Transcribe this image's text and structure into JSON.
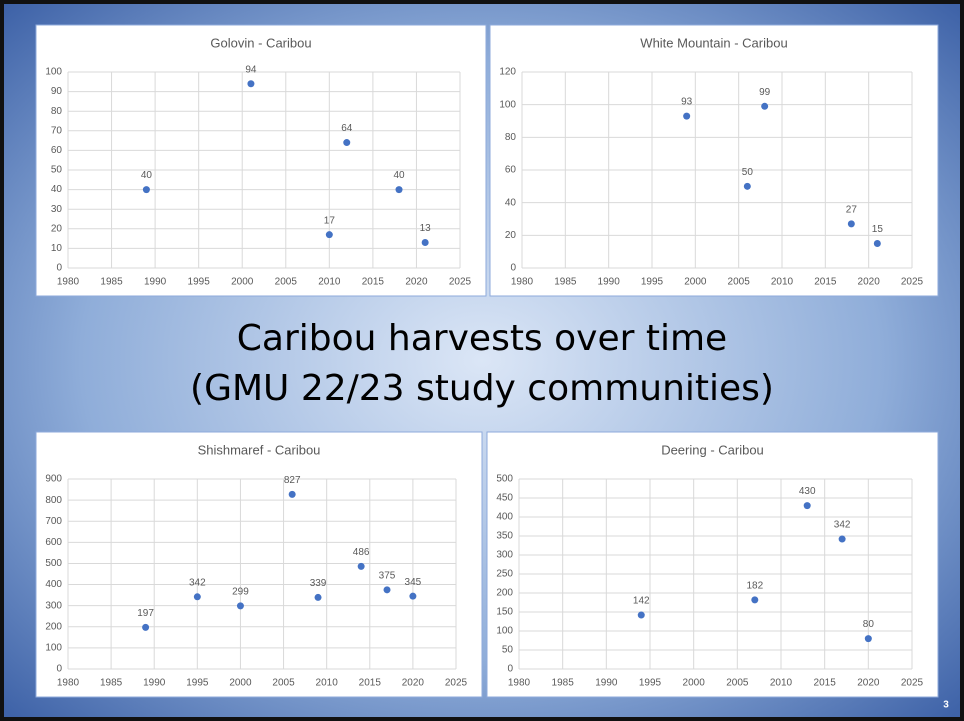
{
  "slide": {
    "title_lines": [
      "Caribou harvests over time",
      "(GMU 22/23 study communities)"
    ],
    "page_number": 3
  },
  "chart_data": [
    {
      "type": "scatter",
      "title": "Golovin - Caribou",
      "color": "#4472c4",
      "x": [
        1989,
        2001,
        2010,
        2012,
        2018,
        2021
      ],
      "values": [
        40,
        94,
        17,
        64,
        40,
        13
      ],
      "xlim": [
        1980,
        2025
      ],
      "xticks": [
        1980,
        1985,
        1990,
        1995,
        2000,
        2005,
        2010,
        2015,
        2020,
        2025
      ],
      "ylim": [
        0,
        100
      ],
      "yticks": [
        0,
        10,
        20,
        30,
        40,
        50,
        60,
        70,
        80,
        90,
        100
      ],
      "grid": true
    },
    {
      "type": "scatter",
      "title": "White Mountain - Caribou",
      "color": "#4472c4",
      "x": [
        1999,
        2006,
        2008,
        2018,
        2021
      ],
      "values": [
        93,
        50,
        99,
        27,
        15
      ],
      "xlim": [
        1980,
        2025
      ],
      "xticks": [
        1980,
        1985,
        1990,
        1995,
        2000,
        2005,
        2010,
        2015,
        2020,
        2025
      ],
      "ylim": [
        0,
        120
      ],
      "yticks": [
        0,
        20,
        40,
        60,
        80,
        100,
        120
      ],
      "grid": true
    },
    {
      "type": "scatter",
      "title": "Shishmaref - Caribou",
      "color": "#4472c4",
      "x": [
        1989,
        1995,
        2000,
        2006,
        2009,
        2014,
        2017,
        2020
      ],
      "values": [
        197,
        342,
        299,
        827,
        339,
        486,
        375,
        345
      ],
      "xlim": [
        1980,
        2025
      ],
      "xticks": [
        1980,
        1985,
        1990,
        1995,
        2000,
        2005,
        2010,
        2015,
        2020,
        2025
      ],
      "ylim": [
        0,
        900
      ],
      "yticks": [
        0,
        100,
        200,
        300,
        400,
        500,
        600,
        700,
        800,
        900
      ],
      "grid": true
    },
    {
      "type": "scatter",
      "title": "Deering - Caribou",
      "color": "#4472c4",
      "x": [
        1994,
        2007,
        2013,
        2017,
        2020
      ],
      "values": [
        142,
        182,
        430,
        342,
        80
      ],
      "xlim": [
        1980,
        2025
      ],
      "xticks": [
        1980,
        1985,
        1990,
        1995,
        2000,
        2005,
        2010,
        2015,
        2020,
        2025
      ],
      "ylim": [
        0,
        500
      ],
      "yticks": [
        0,
        50,
        100,
        150,
        200,
        250,
        300,
        350,
        400,
        450,
        500
      ],
      "grid": true
    }
  ]
}
